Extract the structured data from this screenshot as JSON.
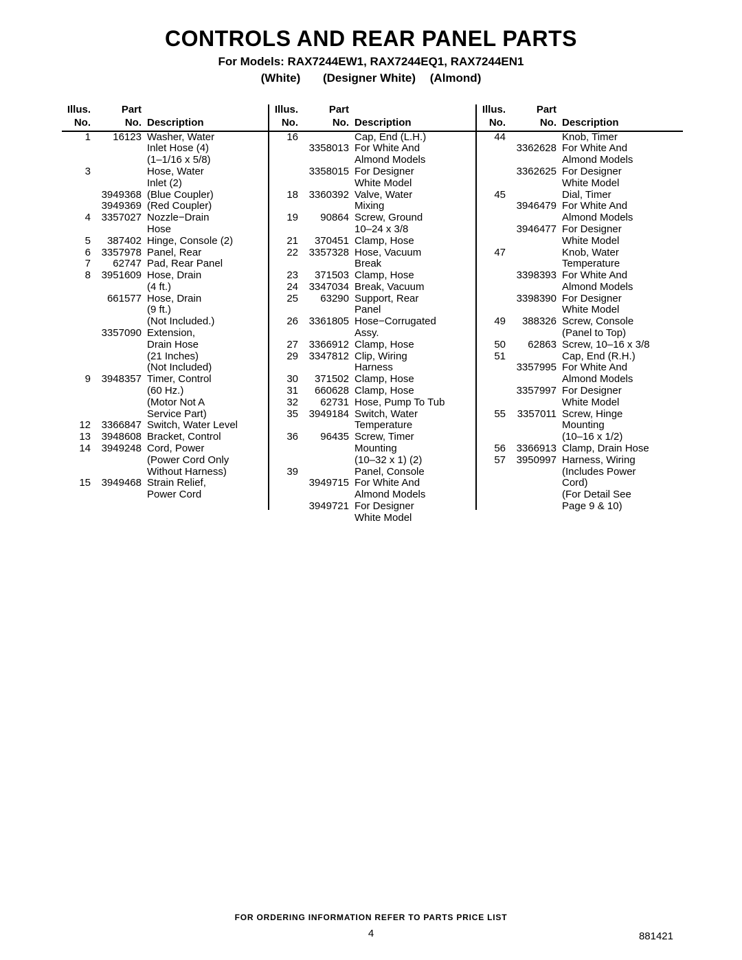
{
  "title": "CONTROLS AND REAR PANEL PARTS",
  "subtitle": "For Models: RAX7244EW1,  RAX7244EQ1, RAX7244EN1",
  "colors": {
    "white": "(White)",
    "designer_white": "(Designer White)",
    "almond": "(Almond)"
  },
  "headers": {
    "illus1": "Illus.",
    "illus2": "No.",
    "part1": "Part",
    "part2": "No.",
    "desc": "Description"
  },
  "footer": {
    "order": "FOR ORDERING INFORMATION REFER TO PARTS PRICE LIST",
    "page": "4",
    "doc": "881421"
  },
  "col1": [
    {
      "i": "1",
      "p": "16123",
      "d": "Washer, Water"
    },
    {
      "i": "",
      "p": "",
      "d": "Inlet Hose (4)"
    },
    {
      "i": "",
      "p": "",
      "d": "(1–1/16 x 5/8)"
    },
    {
      "i": "3",
      "p": "",
      "d": "Hose, Water"
    },
    {
      "i": "",
      "p": "",
      "d": "Inlet (2)"
    },
    {
      "i": "",
      "p": "3949368",
      "d": "(Blue Coupler)"
    },
    {
      "i": "",
      "p": "3949369",
      "d": "(Red Coupler)"
    },
    {
      "i": "4",
      "p": "3357027",
      "d": "Nozzle−Drain"
    },
    {
      "i": "",
      "p": "",
      "d": "Hose"
    },
    {
      "i": "5",
      "p": "387402",
      "d": "Hinge, Console (2)"
    },
    {
      "i": "6",
      "p": "3357978",
      "d": "Panel, Rear"
    },
    {
      "i": "7",
      "p": "62747",
      "d": "Pad, Rear Panel"
    },
    {
      "i": "8",
      "p": "3951609",
      "d": "Hose, Drain"
    },
    {
      "i": "",
      "p": "",
      "d": "(4 ft.)"
    },
    {
      "i": "",
      "p": "661577",
      "d": "Hose, Drain"
    },
    {
      "i": "",
      "p": "",
      "d": "(9 ft.)"
    },
    {
      "i": "",
      "p": "",
      "d": "(Not Included.)"
    },
    {
      "i": "",
      "p": "3357090",
      "d": "Extension,"
    },
    {
      "i": "",
      "p": "",
      "d": "Drain Hose"
    },
    {
      "i": "",
      "p": "",
      "d": "(21 Inches)"
    },
    {
      "i": "",
      "p": "",
      "d": "(Not Included)"
    },
    {
      "i": "9",
      "p": "3948357",
      "d": "Timer, Control"
    },
    {
      "i": "",
      "p": "",
      "d": "(60 Hz.)"
    },
    {
      "i": "",
      "p": "",
      "d": "(Motor Not A"
    },
    {
      "i": "",
      "p": "",
      "d": "Service Part)"
    },
    {
      "i": "12",
      "p": "3366847",
      "d": "Switch, Water Level"
    },
    {
      "i": "13",
      "p": "3948608",
      "d": "Bracket, Control"
    },
    {
      "i": "14",
      "p": "3949248",
      "d": "Cord, Power"
    },
    {
      "i": "",
      "p": "",
      "d": "(Power Cord Only"
    },
    {
      "i": "",
      "p": "",
      "d": "Without Harness)"
    },
    {
      "i": "15",
      "p": "3949468",
      "d": "Strain Relief,"
    },
    {
      "i": "",
      "p": "",
      "d": "Power Cord"
    }
  ],
  "col2": [
    {
      "i": "16",
      "p": "",
      "d": "Cap, End (L.H.)"
    },
    {
      "i": "",
      "p": "3358013",
      "d": "For White And"
    },
    {
      "i": "",
      "p": "",
      "d": "Almond Models"
    },
    {
      "i": "",
      "p": "3358015",
      "d": "For Designer"
    },
    {
      "i": "",
      "p": "",
      "d": "White Model"
    },
    {
      "i": "18",
      "p": "3360392",
      "d": "Valve, Water"
    },
    {
      "i": "",
      "p": "",
      "d": "Mixing"
    },
    {
      "i": "19",
      "p": "90864",
      "d": "Screw, Ground"
    },
    {
      "i": "",
      "p": "",
      "d": "10–24 x 3/8"
    },
    {
      "i": "21",
      "p": "370451",
      "d": "Clamp, Hose"
    },
    {
      "i": "22",
      "p": "3357328",
      "d": "Hose, Vacuum"
    },
    {
      "i": "",
      "p": "",
      "d": "Break"
    },
    {
      "i": "23",
      "p": "371503",
      "d": "Clamp, Hose"
    },
    {
      "i": "24",
      "p": "3347034",
      "d": "Break, Vacuum"
    },
    {
      "i": "25",
      "p": "63290",
      "d": "Support, Rear"
    },
    {
      "i": "",
      "p": "",
      "d": "Panel"
    },
    {
      "i": "26",
      "p": "3361805",
      "d": "Hose−Corrugated"
    },
    {
      "i": "",
      "p": "",
      "d": "Assy."
    },
    {
      "i": "27",
      "p": "3366912",
      "d": "Clamp, Hose"
    },
    {
      "i": "29",
      "p": "3347812",
      "d": "Clip, Wiring"
    },
    {
      "i": "",
      "p": "",
      "d": "Harness"
    },
    {
      "i": "30",
      "p": "371502",
      "d": "Clamp, Hose"
    },
    {
      "i": "31",
      "p": "660628",
      "d": "Clamp, Hose"
    },
    {
      "i": "32",
      "p": "62731",
      "d": "Hose, Pump To Tub"
    },
    {
      "i": "35",
      "p": "3949184",
      "d": "Switch, Water"
    },
    {
      "i": "",
      "p": "",
      "d": "Temperature"
    },
    {
      "i": "36",
      "p": "96435",
      "d": "Screw, Timer"
    },
    {
      "i": "",
      "p": "",
      "d": "Mounting"
    },
    {
      "i": "",
      "p": "",
      "d": "(10–32 x 1) (2)"
    },
    {
      "i": "39",
      "p": "",
      "d": "Panel, Console"
    },
    {
      "i": "",
      "p": "3949715",
      "d": "For White And"
    },
    {
      "i": "",
      "p": "",
      "d": "Almond Models"
    },
    {
      "i": "",
      "p": "3949721",
      "d": "For Designer"
    },
    {
      "i": "",
      "p": "",
      "d": "White Model"
    }
  ],
  "col3": [
    {
      "i": "44",
      "p": "",
      "d": "Knob, Timer"
    },
    {
      "i": "",
      "p": "3362628",
      "d": "For White And"
    },
    {
      "i": "",
      "p": "",
      "d": "Almond Models"
    },
    {
      "i": "",
      "p": "3362625",
      "d": "For Designer"
    },
    {
      "i": "",
      "p": "",
      "d": "White Model"
    },
    {
      "i": "45",
      "p": "",
      "d": "Dial, Timer"
    },
    {
      "i": "",
      "p": "3946479",
      "d": "For White And"
    },
    {
      "i": "",
      "p": "",
      "d": "Almond Models"
    },
    {
      "i": "",
      "p": "3946477",
      "d": "For Designer"
    },
    {
      "i": "",
      "p": "",
      "d": "White Model"
    },
    {
      "i": "47",
      "p": "",
      "d": "Knob, Water"
    },
    {
      "i": "",
      "p": "",
      "d": "Temperature"
    },
    {
      "i": "",
      "p": "3398393",
      "d": "For White And"
    },
    {
      "i": "",
      "p": "",
      "d": "Almond Models"
    },
    {
      "i": "",
      "p": "3398390",
      "d": "For Designer"
    },
    {
      "i": "",
      "p": "",
      "d": "White Model"
    },
    {
      "i": "49",
      "p": "388326",
      "d": "Screw, Console"
    },
    {
      "i": "",
      "p": "",
      "d": "(Panel to Top)"
    },
    {
      "i": "50",
      "p": "62863",
      "d": "Screw, 10–16 x 3/8"
    },
    {
      "i": "51",
      "p": "",
      "d": "Cap, End (R.H.)"
    },
    {
      "i": "",
      "p": "3357995",
      "d": "For White And"
    },
    {
      "i": "",
      "p": "",
      "d": "Almond Models"
    },
    {
      "i": "",
      "p": "3357997",
      "d": "For Designer"
    },
    {
      "i": "",
      "p": "",
      "d": "White Model"
    },
    {
      "i": "55",
      "p": "3357011",
      "d": "Screw, Hinge"
    },
    {
      "i": "",
      "p": "",
      "d": "Mounting"
    },
    {
      "i": "",
      "p": "",
      "d": "(10–16 x 1/2)"
    },
    {
      "i": "56",
      "p": "3366913",
      "d": "Clamp, Drain Hose"
    },
    {
      "i": "57",
      "p": "3950997",
      "d": "Harness, Wiring"
    },
    {
      "i": "",
      "p": "",
      "d": "(Includes Power"
    },
    {
      "i": "",
      "p": "",
      "d": "Cord)"
    },
    {
      "i": "",
      "p": "",
      "d": "(For Detail See"
    },
    {
      "i": "",
      "p": "",
      "d": "Page 9 & 10)"
    }
  ]
}
